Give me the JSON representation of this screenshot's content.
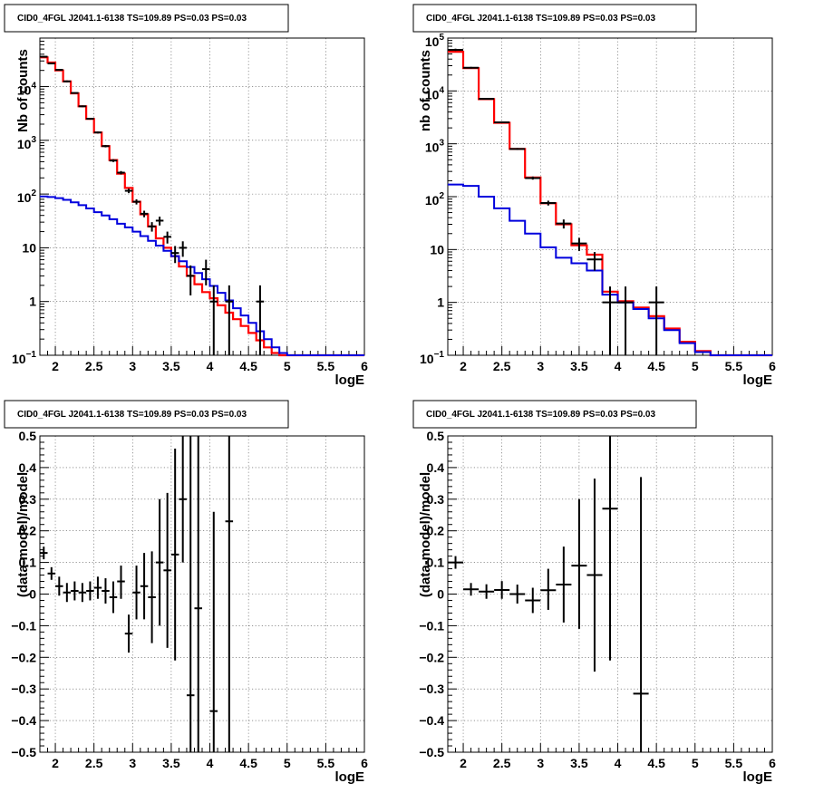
{
  "chart_data": [
    {
      "type": "step",
      "title": "CID0_4FGL J2041.1-6138 TS=109.89 PS=0.03 PS=0.03",
      "xlabel": "logE",
      "ylabel": "Nb of counts",
      "yscale": "log",
      "xlim": [
        1.8,
        6
      ],
      "ylim": [
        0.1,
        80000
      ],
      "grid": true,
      "x_ticks": [
        "2",
        "2.5",
        "3",
        "3.5",
        "4",
        "4.5",
        "5",
        "5.5",
        "6"
      ],
      "y_ticks": [
        {
          "v": 0.1,
          "label": "10",
          "sup": "−1"
        },
        {
          "v": 1,
          "label": "1",
          "sup": ""
        },
        {
          "v": 10,
          "label": "10",
          "sup": ""
        },
        {
          "v": 100,
          "label": "10",
          "sup": "2"
        },
        {
          "v": 1000,
          "label": "10",
          "sup": "3"
        },
        {
          "v": 10000,
          "label": "10",
          "sup": "4"
        }
      ],
      "bin_edges": [
        1.8,
        1.9,
        2.0,
        2.1,
        2.2,
        2.3,
        2.4,
        2.5,
        2.6,
        2.7,
        2.8,
        2.9,
        3.0,
        3.1,
        3.2,
        3.3,
        3.4,
        3.5,
        3.6,
        3.7,
        3.8,
        3.9,
        4.0,
        4.1,
        4.2,
        4.3,
        4.4,
        4.5,
        4.6,
        4.7,
        4.8,
        4.9,
        5.0,
        6.0
      ],
      "series": [
        {
          "color": "#ff0000",
          "values": [
            35000,
            28000,
            20000,
            12500,
            7500,
            4300,
            2500,
            1400,
            780,
            430,
            240,
            130,
            72,
            42,
            25,
            15,
            10,
            7,
            4.5,
            3,
            2.1,
            1.5,
            1.15,
            0.85,
            0.62,
            0.47,
            0.35,
            0.26,
            0.19,
            0.14,
            0.11,
            0.1,
            0.1
          ]
        },
        {
          "color": "#0000dd",
          "values": [
            90,
            88,
            84,
            78,
            70,
            62,
            54,
            46,
            40,
            34,
            28,
            24,
            20,
            16.5,
            13.5,
            11,
            8.8,
            7,
            5.6,
            4.4,
            3.4,
            2.6,
            1.95,
            1.45,
            1.05,
            0.75,
            0.55,
            0.4,
            0.28,
            0.2,
            0.14,
            0.11,
            0.1
          ]
        }
      ],
      "points": [
        {
          "x": 1.85,
          "y": 36000,
          "dx": 0.05,
          "lo": 35000,
          "hi": 37000
        },
        {
          "x": 1.95,
          "y": 27000,
          "dx": 0.05,
          "lo": 26000,
          "hi": 28000
        },
        {
          "x": 2.05,
          "y": 20500,
          "dx": 0.05,
          "lo": 20000,
          "hi": 21000
        },
        {
          "x": 2.15,
          "y": 12500,
          "dx": 0.05,
          "lo": 12000,
          "hi": 13000
        },
        {
          "x": 2.25,
          "y": 7600,
          "dx": 0.05,
          "lo": 7400,
          "hi": 7800
        },
        {
          "x": 2.35,
          "y": 4300,
          "dx": 0.05,
          "lo": 4150,
          "hi": 4450
        },
        {
          "x": 2.45,
          "y": 2520,
          "dx": 0.05,
          "lo": 2420,
          "hi": 2620
        },
        {
          "x": 2.55,
          "y": 1400,
          "dx": 0.05,
          "lo": 1340,
          "hi": 1460
        },
        {
          "x": 2.65,
          "y": 780,
          "dx": 0.05,
          "lo": 740,
          "hi": 820
        },
        {
          "x": 2.75,
          "y": 420,
          "dx": 0.05,
          "lo": 395,
          "hi": 445
        },
        {
          "x": 2.85,
          "y": 250,
          "dx": 0.05,
          "lo": 232,
          "hi": 268
        },
        {
          "x": 2.95,
          "y": 115,
          "dx": 0.05,
          "lo": 104,
          "hi": 126
        },
        {
          "x": 3.05,
          "y": 72,
          "dx": 0.05,
          "lo": 64,
          "hi": 80
        },
        {
          "x": 3.15,
          "y": 43,
          "dx": 0.05,
          "lo": 37,
          "hi": 49
        },
        {
          "x": 3.25,
          "y": 25,
          "dx": 0.05,
          "lo": 20,
          "hi": 30
        },
        {
          "x": 3.35,
          "y": 32,
          "dx": 0.05,
          "lo": 26,
          "hi": 38
        },
        {
          "x": 3.45,
          "y": 16,
          "dx": 0.05,
          "lo": 12,
          "hi": 20
        },
        {
          "x": 3.55,
          "y": 8,
          "dx": 0.05,
          "lo": 5.2,
          "hi": 10.8
        },
        {
          "x": 3.65,
          "y": 10,
          "dx": 0.05,
          "lo": 6.8,
          "hi": 13.2
        },
        {
          "x": 3.75,
          "y": 3,
          "dx": 0.05,
          "lo": 1.3,
          "hi": 4.7
        },
        {
          "x": 3.95,
          "y": 4,
          "dx": 0.05,
          "lo": 2,
          "hi": 6
        },
        {
          "x": 4.05,
          "y": 1,
          "dx": 0.05,
          "lo": 0.1,
          "hi": 2
        },
        {
          "x": 4.25,
          "y": 1,
          "dx": 0.05,
          "lo": 0.1,
          "hi": 2
        },
        {
          "x": 4.65,
          "y": 1,
          "dx": 0.05,
          "lo": 0.1,
          "hi": 2
        }
      ]
    },
    {
      "type": "step",
      "title": "CID0_4FGL J2041.1-6138 TS=109.89 PS=0.03 PS=0.03",
      "xlabel": "logE",
      "ylabel": "nb of counts",
      "yscale": "log",
      "xlim": [
        1.8,
        6
      ],
      "ylim": [
        0.1,
        100000
      ],
      "grid": true,
      "x_ticks": [
        "2",
        "2.5",
        "3",
        "3.5",
        "4",
        "4.5",
        "5",
        "5.5",
        "6"
      ],
      "y_ticks": [
        {
          "v": 0.1,
          "label": "10",
          "sup": "−1"
        },
        {
          "v": 1,
          "label": "1",
          "sup": ""
        },
        {
          "v": 10,
          "label": "10",
          "sup": ""
        },
        {
          "v": 100,
          "label": "10",
          "sup": "2"
        },
        {
          "v": 1000,
          "label": "10",
          "sup": "3"
        },
        {
          "v": 10000,
          "label": "10",
          "sup": "4"
        },
        {
          "v": 100000,
          "label": "10",
          "sup": "5"
        }
      ],
      "bin_edges": [
        1.8,
        2.0,
        2.2,
        2.4,
        2.6,
        2.8,
        3.0,
        3.2,
        3.4,
        3.6,
        3.8,
        4.0,
        4.2,
        4.4,
        4.6,
        4.8,
        5.0,
        5.2,
        5.4,
        6.0
      ],
      "series": [
        {
          "color": "#ff0000",
          "values": [
            55000,
            27000,
            7000,
            2500,
            800,
            230,
            75,
            30,
            12,
            8,
            1.6,
            1.05,
            0.8,
            0.55,
            0.32,
            0.18,
            0.12,
            0.1,
            0.1
          ]
        },
        {
          "color": "#0000dd",
          "values": [
            170,
            160,
            100,
            60,
            35,
            20,
            11,
            7,
            5.5,
            4,
            1.4,
            1.0,
            0.75,
            0.5,
            0.3,
            0.17,
            0.115,
            0.1,
            0.1
          ]
        }
      ],
      "points": [
        {
          "x": 1.9,
          "y": 60000,
          "dx": 0.1,
          "lo": 57000,
          "hi": 63000
        },
        {
          "x": 2.1,
          "y": 27500,
          "dx": 0.1,
          "lo": 26500,
          "hi": 28500
        },
        {
          "x": 2.3,
          "y": 7100,
          "dx": 0.1,
          "lo": 6900,
          "hi": 7300
        },
        {
          "x": 2.5,
          "y": 2550,
          "dx": 0.1,
          "lo": 2450,
          "hi": 2650
        },
        {
          "x": 2.7,
          "y": 800,
          "dx": 0.1,
          "lo": 770,
          "hi": 830
        },
        {
          "x": 2.9,
          "y": 225,
          "dx": 0.1,
          "lo": 210,
          "hi": 240
        },
        {
          "x": 3.1,
          "y": 76,
          "dx": 0.1,
          "lo": 68,
          "hi": 84
        },
        {
          "x": 3.3,
          "y": 31,
          "dx": 0.1,
          "lo": 25,
          "hi": 37
        },
        {
          "x": 3.5,
          "y": 13,
          "dx": 0.1,
          "lo": 9.4,
          "hi": 16.6
        },
        {
          "x": 3.7,
          "y": 6.5,
          "dx": 0.1,
          "lo": 4,
          "hi": 9
        },
        {
          "x": 3.9,
          "y": 1,
          "dx": 0.1,
          "lo": 0.1,
          "hi": 2
        },
        {
          "x": 4.1,
          "y": 1,
          "dx": 0.1,
          "lo": 0.1,
          "hi": 2
        },
        {
          "x": 4.5,
          "y": 1,
          "dx": 0.1,
          "lo": 0.1,
          "hi": 2
        }
      ]
    },
    {
      "type": "scatter",
      "title": "CID0_4FGL J2041.1-6138 TS=109.89 PS=0.03 PS=0.03",
      "xlabel": "logE",
      "ylabel": "(data-model)/model",
      "yscale": "linear",
      "xlim": [
        1.8,
        6
      ],
      "ylim": [
        -0.5,
        0.5
      ],
      "grid": true,
      "x_ticks": [
        "2",
        "2.5",
        "3",
        "3.5",
        "4",
        "4.5",
        "5",
        "5.5",
        "6"
      ],
      "y_ticks": [
        "−0.5",
        "−0.4",
        "−0.3",
        "−0.2",
        "−0.1",
        "0",
        "0.1",
        "0.2",
        "0.3",
        "0.4",
        "0.5"
      ],
      "points": [
        {
          "x": 1.85,
          "y": 0.13,
          "dx": 0.05,
          "lo": 0.11,
          "hi": 0.15
        },
        {
          "x": 1.95,
          "y": 0.065,
          "dx": 0.05,
          "lo": 0.045,
          "hi": 0.085
        },
        {
          "x": 2.05,
          "y": 0.025,
          "dx": 0.05,
          "lo": -0.005,
          "hi": 0.055
        },
        {
          "x": 2.15,
          "y": 0.005,
          "dx": 0.05,
          "lo": -0.025,
          "hi": 0.035
        },
        {
          "x": 2.25,
          "y": 0.01,
          "dx": 0.05,
          "lo": -0.02,
          "hi": 0.04
        },
        {
          "x": 2.35,
          "y": 0.005,
          "dx": 0.05,
          "lo": -0.025,
          "hi": 0.035
        },
        {
          "x": 2.45,
          "y": 0.01,
          "dx": 0.05,
          "lo": -0.02,
          "hi": 0.04
        },
        {
          "x": 2.55,
          "y": 0.02,
          "dx": 0.05,
          "lo": -0.015,
          "hi": 0.055
        },
        {
          "x": 2.65,
          "y": 0.01,
          "dx": 0.05,
          "lo": -0.03,
          "hi": 0.05
        },
        {
          "x": 2.75,
          "y": -0.01,
          "dx": 0.05,
          "lo": -0.06,
          "hi": 0.04
        },
        {
          "x": 2.85,
          "y": 0.04,
          "dx": 0.05,
          "lo": -0.015,
          "hi": 0.09
        },
        {
          "x": 2.95,
          "y": -0.125,
          "dx": 0.05,
          "lo": -0.185,
          "hi": -0.065
        },
        {
          "x": 3.05,
          "y": 0.005,
          "dx": 0.05,
          "lo": -0.08,
          "hi": 0.09
        },
        {
          "x": 3.15,
          "y": 0.025,
          "dx": 0.05,
          "lo": -0.08,
          "hi": 0.13
        },
        {
          "x": 3.25,
          "y": -0.01,
          "dx": 0.05,
          "lo": -0.155,
          "hi": 0.135
        },
        {
          "x": 3.35,
          "y": 0.1,
          "dx": 0.05,
          "lo": -0.1,
          "hi": 0.3
        },
        {
          "x": 3.45,
          "y": 0.075,
          "dx": 0.05,
          "lo": -0.17,
          "hi": 0.32
        },
        {
          "x": 3.55,
          "y": 0.125,
          "dx": 0.05,
          "lo": -0.21,
          "hi": 0.46
        },
        {
          "x": 3.65,
          "y": 0.3,
          "dx": 0.05,
          "lo": 0.1,
          "hi": 0.5
        },
        {
          "x": 3.75,
          "y": -0.32,
          "dx": 0.05,
          "lo": -0.5,
          "hi": 0.5
        },
        {
          "x": 3.85,
          "y": -0.045,
          "dx": 0.05,
          "lo": -0.5,
          "hi": 0.5
        },
        {
          "x": 4.05,
          "y": -0.37,
          "dx": 0.05,
          "lo": -0.5,
          "hi": 0.26
        },
        {
          "x": 4.25,
          "y": 0.23,
          "dx": 0.05,
          "lo": -0.5,
          "hi": 0.5
        }
      ]
    },
    {
      "type": "scatter",
      "title": "CID0_4FGL J2041.1-6138 TS=109.89 PS=0.03 PS=0.03",
      "xlabel": "logE",
      "ylabel": "(data-model)/model",
      "yscale": "linear",
      "xlim": [
        1.8,
        6
      ],
      "ylim": [
        -0.5,
        0.5
      ],
      "grid": true,
      "x_ticks": [
        "2",
        "2.5",
        "3",
        "3.5",
        "4",
        "4.5",
        "5",
        "5.5",
        "6"
      ],
      "y_ticks": [
        "−0.5",
        "−0.4",
        "−0.3",
        "−0.2",
        "−0.1",
        "0",
        "0.1",
        "0.2",
        "0.3",
        "0.4",
        "0.5"
      ],
      "points": [
        {
          "x": 1.9,
          "y": 0.1,
          "dx": 0.1,
          "lo": 0.08,
          "hi": 0.12
        },
        {
          "x": 2.1,
          "y": 0.015,
          "dx": 0.1,
          "lo": -0.005,
          "hi": 0.035
        },
        {
          "x": 2.3,
          "y": 0.008,
          "dx": 0.1,
          "lo": -0.015,
          "hi": 0.031
        },
        {
          "x": 2.5,
          "y": 0.013,
          "dx": 0.1,
          "lo": -0.015,
          "hi": 0.041
        },
        {
          "x": 2.7,
          "y": 0.0,
          "dx": 0.1,
          "lo": -0.03,
          "hi": 0.03
        },
        {
          "x": 2.9,
          "y": -0.02,
          "dx": 0.1,
          "lo": -0.06,
          "hi": 0.02
        },
        {
          "x": 3.1,
          "y": 0.012,
          "dx": 0.1,
          "lo": -0.05,
          "hi": 0.08
        },
        {
          "x": 3.3,
          "y": 0.03,
          "dx": 0.1,
          "lo": -0.09,
          "hi": 0.15
        },
        {
          "x": 3.5,
          "y": 0.09,
          "dx": 0.1,
          "lo": -0.11,
          "hi": 0.3
        },
        {
          "x": 3.7,
          "y": 0.06,
          "dx": 0.1,
          "lo": -0.245,
          "hi": 0.365
        },
        {
          "x": 3.9,
          "y": 0.27,
          "dx": 0.1,
          "lo": -0.21,
          "hi": 0.5
        },
        {
          "x": 4.3,
          "y": -0.315,
          "dx": 0.1,
          "lo": -0.5,
          "hi": 0.37
        }
      ]
    }
  ]
}
